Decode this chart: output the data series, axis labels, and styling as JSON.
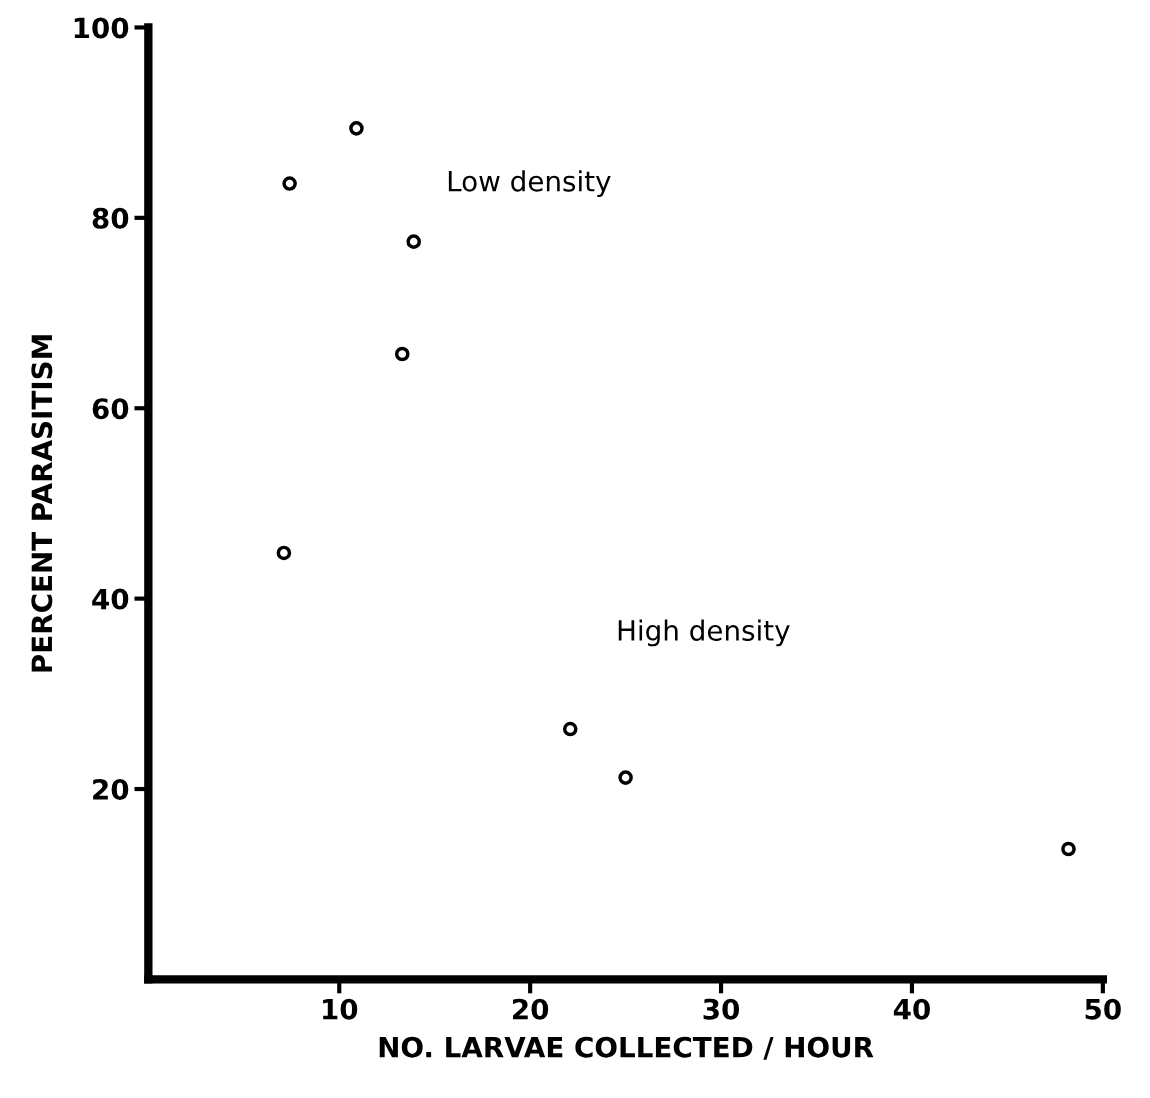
{
  "chart_data": {
    "type": "scatter",
    "xlabel": "NO. LARVAE COLLECTED / HOUR",
    "ylabel": "PERCENT PARASITISM",
    "x": [
      7.4,
      10.9,
      13.9,
      13.3,
      7.1,
      22.1,
      25.0,
      48.2
    ],
    "values": [
      83.6,
      89.4,
      77.5,
      65.7,
      44.8,
      26.3,
      21.2,
      13.7
    ],
    "color": "#000000",
    "marker": "circle",
    "xlim": [
      0,
      50
    ],
    "ylim": [
      0,
      100
    ],
    "xticks": [
      10,
      20,
      30,
      40,
      50
    ],
    "yticks": [
      20,
      40,
      60,
      80,
      100
    ],
    "grid": false,
    "legend": false,
    "annotations": [
      "Low density",
      "High density"
    ]
  }
}
